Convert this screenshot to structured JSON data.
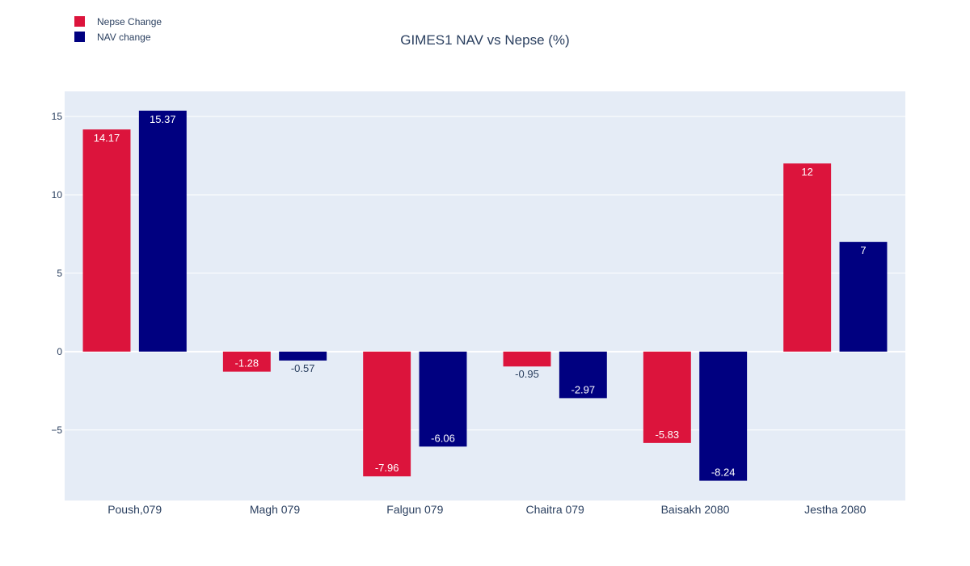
{
  "chart_data": {
    "type": "bar",
    "title": "GIMES1 NAV vs Nepse (%)",
    "xlabel": "",
    "ylabel": "",
    "categories": [
      "Poush,079",
      "Magh 079",
      "Falgun 079",
      "Chaitra 079",
      "Baisakh 2080",
      "Jestha 2080"
    ],
    "series": [
      {
        "name": "Nepse Change",
        "color": "#DC143C",
        "values": [
          14.17,
          -1.28,
          -7.96,
          -0.95,
          -5.83,
          12
        ],
        "labels": [
          "14.17",
          "-1.28",
          "-7.96",
          "-0.95",
          "-5.83",
          "12"
        ]
      },
      {
        "name": "NAV change",
        "color": "#000080",
        "values": [
          15.37,
          -0.57,
          -6.06,
          -2.97,
          -8.24,
          7
        ],
        "labels": [
          "15.37",
          "-0.57",
          "-6.06",
          "-2.97",
          "-8.24",
          "7"
        ]
      }
    ],
    "ylim": [
      -9.5,
      16.6
    ],
    "yticks": [
      15,
      10,
      5,
      0,
      -5
    ],
    "ytick_labels": [
      "15",
      "10",
      "5",
      "0",
      "−5"
    ],
    "grid": true,
    "legend_position": "top-left",
    "plot_background": "#E5ECF6"
  }
}
